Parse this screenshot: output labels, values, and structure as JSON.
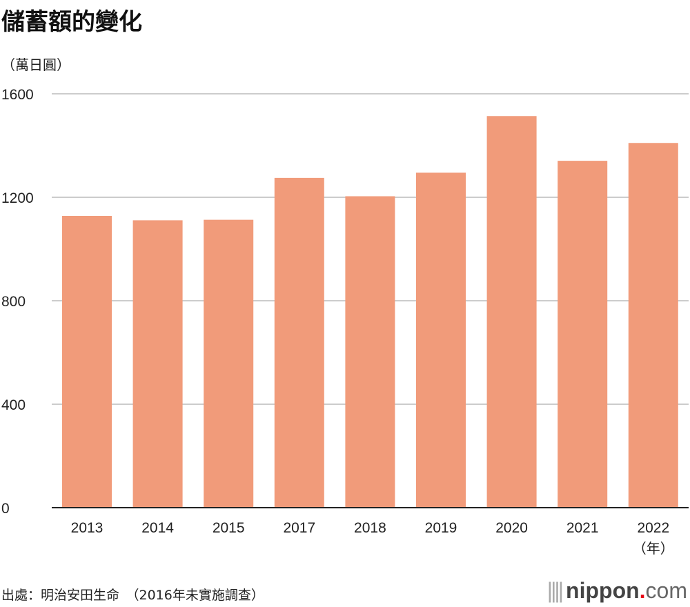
{
  "chart_data": {
    "type": "bar",
    "title": "儲蓄額的變化",
    "ylabel": "（萬日圓）",
    "xlabel": "（年）",
    "categories": [
      "2013",
      "2014",
      "2015",
      "2017",
      "2018",
      "2019",
      "2020",
      "2021",
      "2022"
    ],
    "values": [
      1128,
      1111,
      1113,
      1275,
      1204,
      1295,
      1514,
      1341,
      1410
    ],
    "ylim": [
      0,
      1600
    ],
    "yticks": [
      "0",
      "400",
      "800",
      "1200",
      "1600"
    ],
    "grid": true,
    "color": "#f19b7a"
  },
  "source": "出處：明治安田生命　（2016年未實施調查）",
  "logo": {
    "name": "nippon",
    "dot": ".",
    "tld": "com"
  }
}
